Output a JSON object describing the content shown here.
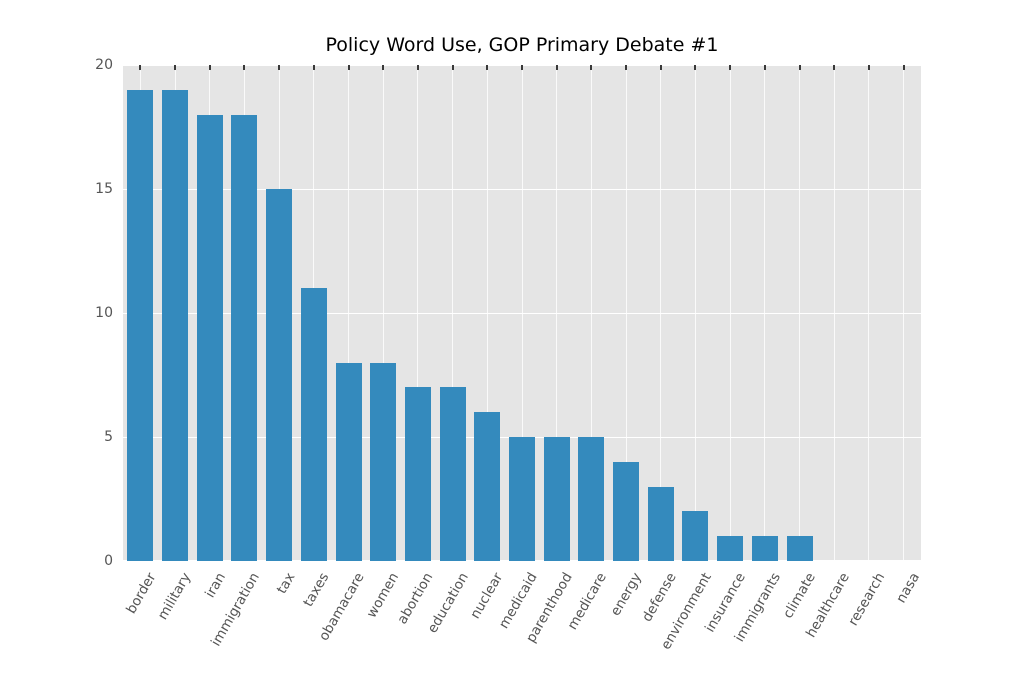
{
  "chart_data": {
    "type": "bar",
    "title": "Policy Word Use, GOP Primary Debate #1",
    "categories": [
      "border",
      "military",
      "iran",
      "immigration",
      "tax",
      "taxes",
      "obamacare",
      "women",
      "abortion",
      "education",
      "nuclear",
      "medicaid",
      "parenthood",
      "medicare",
      "energy",
      "defense",
      "environment",
      "insurance",
      "immigrants",
      "climate",
      "healthcare",
      "research",
      "nasa"
    ],
    "values": [
      19,
      19,
      18,
      18,
      15,
      11,
      8,
      8,
      7,
      7,
      6,
      5,
      5,
      5,
      4,
      3,
      2,
      1,
      1,
      1,
      0,
      0,
      0
    ],
    "xlabel": "",
    "ylabel": "",
    "ylim": [
      0,
      20
    ],
    "yticks": [
      0,
      5,
      10,
      15,
      20
    ],
    "bar_color": "#348ABD",
    "plot_background": "#E5E5E5",
    "grid_color": "#FFFFFF",
    "tick_label_color": "#555555",
    "grid": "horizontal-and-vertical",
    "legend_position": "none"
  }
}
